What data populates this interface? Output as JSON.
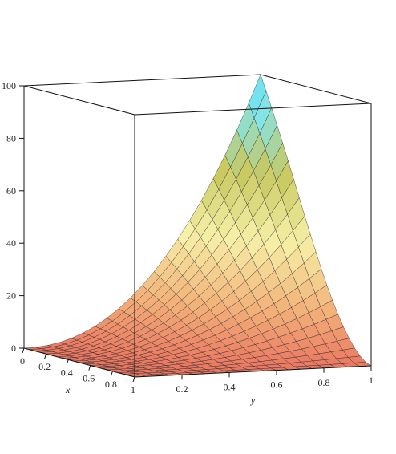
{
  "chart_data": {
    "type": "surface3d",
    "z_axis": {
      "min": 0,
      "max": 100,
      "ticks": [
        0,
        20,
        40,
        60,
        80,
        100
      ],
      "tick_labels": [
        "0",
        "20",
        "40",
        "60",
        "80",
        "100"
      ]
    },
    "x_axis": {
      "label": "x",
      "min": 0,
      "max": 1,
      "ticks": [
        0,
        0.2,
        0.4,
        0.6,
        0.8,
        1
      ],
      "tick_labels": [
        "0",
        "0.2",
        "0.4",
        "0.6",
        "0.8",
        "1"
      ]
    },
    "y_axis": {
      "label": "y",
      "min": 0,
      "max": 1,
      "ticks": [
        0.2,
        0.4,
        0.6,
        0.8,
        1
      ],
      "tick_labels": [
        "0.2",
        "0.4",
        "0.6",
        "0.8",
        "1"
      ]
    },
    "surface": {
      "grid_x": [
        0,
        0.05,
        0.1,
        0.15,
        0.2,
        0.25,
        0.3,
        0.35,
        0.4,
        0.45,
        0.5,
        0.55,
        0.6,
        0.65,
        0.7,
        0.75,
        0.8,
        0.85,
        0.9,
        0.95,
        1
      ],
      "grid_y": [
        0,
        0.05,
        0.1,
        0.15,
        0.2,
        0.25,
        0.3,
        0.35,
        0.4,
        0.45,
        0.5,
        0.55,
        0.6,
        0.65,
        0.7,
        0.75,
        0.8,
        0.85,
        0.9,
        0.95,
        1
      ],
      "z_at_corners": {
        "x0_y0": 0,
        "x1_y0": 0,
        "x0_y1": 100,
        "x1_y1": 0
      },
      "colormap": [
        "#e8645a",
        "#f2b27a",
        "#f6f0a8",
        "#c8c860",
        "#7fe6f0",
        "#38d6ea"
      ]
    },
    "box": true,
    "grid": false
  }
}
